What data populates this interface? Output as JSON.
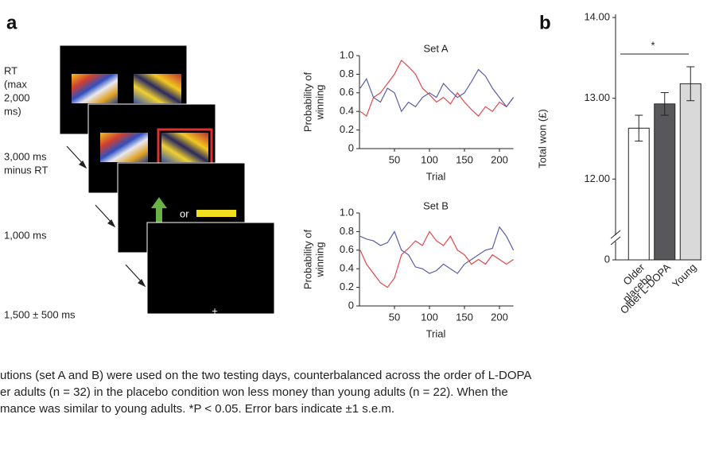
{
  "panel_labels": [
    "a",
    "b"
  ],
  "task": {
    "timings": [
      [
        "RT",
        "(max",
        "2,000",
        "ms)"
      ],
      [
        "3,000 ms",
        "minus RT"
      ],
      [
        "1,000 ms"
      ],
      [
        "1,500 ± 500 ms"
      ]
    ],
    "or_text": "or",
    "fixation": "+"
  },
  "chart_data": [
    {
      "type": "line",
      "title": "Set A",
      "xlabel": "Trial",
      "ylabel": [
        "Probability of",
        "winning"
      ],
      "x": [
        1,
        10,
        20,
        30,
        40,
        50,
        60,
        70,
        80,
        90,
        100,
        110,
        120,
        130,
        140,
        150,
        160,
        170,
        180,
        190,
        200,
        210,
        220
      ],
      "series": [
        {
          "color": "#e2474c",
          "values": [
            0.4,
            0.35,
            0.55,
            0.6,
            0.7,
            0.8,
            0.95,
            0.88,
            0.8,
            0.65,
            0.58,
            0.5,
            0.55,
            0.48,
            0.6,
            0.5,
            0.42,
            0.35,
            0.45,
            0.4,
            0.5,
            0.45,
            0.55
          ]
        },
        {
          "color": "#5a5ea8",
          "values": [
            0.65,
            0.75,
            0.55,
            0.5,
            0.65,
            0.6,
            0.4,
            0.5,
            0.45,
            0.55,
            0.6,
            0.55,
            0.7,
            0.62,
            0.55,
            0.6,
            0.72,
            0.85,
            0.78,
            0.65,
            0.55,
            0.45,
            0.55
          ]
        }
      ],
      "xlim": [
        0,
        220
      ],
      "ylim": [
        0,
        1
      ],
      "xticks": [
        50,
        100,
        150,
        200
      ],
      "yticks": [
        0,
        0.2,
        0.4,
        0.6,
        0.8,
        {
          "value": 1,
          "label": "1.0"
        }
      ]
    },
    {
      "type": "line",
      "title": "Set B",
      "xlabel": "Trial",
      "ylabel": [
        "Probability of",
        "winning"
      ],
      "x": [
        1,
        10,
        20,
        30,
        40,
        50,
        60,
        70,
        80,
        90,
        100,
        110,
        120,
        130,
        140,
        150,
        160,
        170,
        180,
        190,
        200,
        210,
        220
      ],
      "series": [
        {
          "color": "#5a5ea8",
          "values": [
            0.75,
            0.72,
            0.7,
            0.65,
            0.68,
            0.8,
            0.6,
            0.55,
            0.42,
            0.4,
            0.35,
            0.38,
            0.45,
            0.4,
            0.35,
            0.45,
            0.5,
            0.55,
            0.6,
            0.62,
            0.85,
            0.75,
            0.6
          ]
        },
        {
          "color": "#e2474c",
          "values": [
            0.6,
            0.45,
            0.35,
            0.25,
            0.2,
            0.3,
            0.55,
            0.62,
            0.7,
            0.65,
            0.8,
            0.7,
            0.65,
            0.75,
            0.6,
            0.55,
            0.45,
            0.5,
            0.45,
            0.55,
            0.5,
            0.45,
            0.5
          ]
        }
      ],
      "xlim": [
        0,
        220
      ],
      "ylim": [
        0,
        1
      ],
      "xticks": [
        50,
        100,
        150,
        200
      ],
      "yticks": [
        0,
        0.2,
        0.4,
        0.6,
        0.8,
        {
          "value": 1,
          "label": "1.0"
        }
      ]
    },
    {
      "type": "bar",
      "ylabel": "Total won (£)",
      "categories": [
        [
          "Older",
          "placebo"
        ],
        [
          "Older L-DOPA"
        ],
        [
          "Young"
        ]
      ],
      "values": [
        12.63,
        12.93,
        13.18
      ],
      "errors": [
        0.16,
        0.14,
        0.21
      ],
      "colors": [
        "#ffffff",
        "#58585a",
        "#d9d9d9"
      ],
      "ylim": [
        0,
        14
      ],
      "axis_break": [
        0,
        11
      ],
      "yticks": [
        0,
        {
          "value": 12,
          "label": "12.00"
        },
        {
          "value": 13,
          "label": "13.00"
        },
        {
          "value": 14,
          "label": "14.00"
        }
      ],
      "annotation": "*"
    }
  ],
  "caption": [
    "utions (set A and B) were used on the two testing days, counterbalanced across the order of L-DOPA",
    "er adults (n = 32) in the placebo condition won less money than young adults (n = 22). When the",
    "mance was similar to young adults. *P < 0.05. Error bars indicate ±1 s.e.m."
  ]
}
